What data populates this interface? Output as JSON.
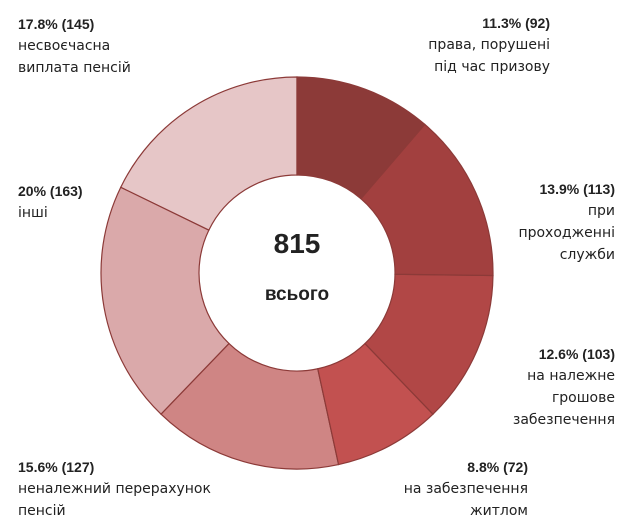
{
  "chart_data": {
    "type": "donut",
    "categories": [
      "права, порушені\nпід час призову",
      "при\nпроходженні\nслужби",
      "на належне\nгрошове\nзабезпечення",
      "на забезпечення\nжитлом",
      "неналежний перерахунок\nпенсій",
      "інші",
      "несвоєчасна\nвиплата  пенсій"
    ],
    "values": [
      11.3,
      13.9,
      12.6,
      8.8,
      15.6,
      20,
      17.8
    ],
    "value_labels": [
      "11.3% (92)",
      "13.9% (113)",
      "12.6% (103)",
      "8.8% (72)",
      "15.6% (127)",
      "20% (163)",
      "17.8% (145)"
    ],
    "colors": [
      "#8c3a38",
      "#a2403f",
      "#b14746",
      "#c25150",
      "#cf8584",
      "#daa9aa",
      "#e6c6c7"
    ],
    "total": 815,
    "total_label": "всього"
  }
}
